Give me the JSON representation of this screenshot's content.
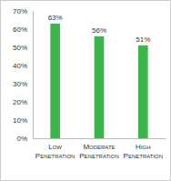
{
  "chart_data": {
    "type": "bar",
    "categories": [
      "Low Penetration",
      "Moderate Penetration",
      "High Penetration"
    ],
    "values": [
      63,
      56,
      51
    ],
    "value_labels": [
      "63%",
      "56%",
      "51%"
    ],
    "data_labels": true,
    "color": "#3db54a",
    "ylim": [
      0,
      70
    ],
    "yticks": [
      {
        "value": 0,
        "label": "0%"
      },
      {
        "value": 10,
        "label": "10%"
      },
      {
        "value": 20,
        "label": "20%"
      },
      {
        "value": 30,
        "label": "30%"
      },
      {
        "value": 40,
        "label": "40%"
      },
      {
        "value": 50,
        "label": "50%"
      },
      {
        "value": 60,
        "label": "60%"
      },
      {
        "value": 70,
        "label": "70%"
      }
    ],
    "grid": false
  }
}
